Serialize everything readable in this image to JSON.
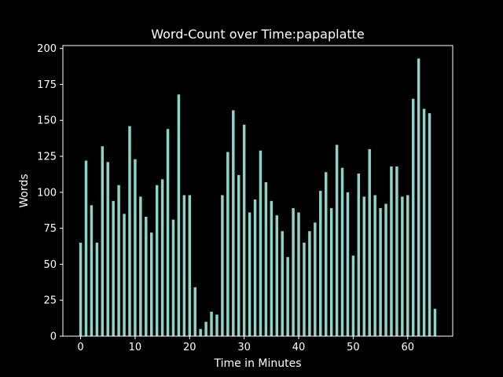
{
  "chart_data": {
    "type": "bar",
    "title": "Word-Count over Time:papaplatte",
    "xlabel": "Time in Minutes",
    "ylabel": "Words",
    "xlim": [
      -3.25,
      68.25
    ],
    "ylim": [
      0,
      202
    ],
    "xticks": [
      0,
      10,
      20,
      30,
      40,
      50,
      60
    ],
    "yticks": [
      0,
      25,
      50,
      75,
      100,
      125,
      150,
      175,
      200
    ],
    "grid": false,
    "x": [
      0,
      1,
      2,
      3,
      4,
      5,
      6,
      7,
      8,
      9,
      10,
      11,
      12,
      13,
      14,
      15,
      16,
      17,
      18,
      19,
      20,
      21,
      22,
      23,
      24,
      25,
      26,
      27,
      28,
      29,
      30,
      31,
      32,
      33,
      34,
      35,
      36,
      37,
      38,
      39,
      40,
      41,
      42,
      43,
      44,
      45,
      46,
      47,
      48,
      49,
      50,
      51,
      52,
      53,
      54,
      55,
      56,
      57,
      58,
      59,
      60,
      61,
      62,
      63,
      64,
      65
    ],
    "values": [
      65,
      122,
      91,
      65,
      132,
      121,
      94,
      105,
      85,
      146,
      123,
      97,
      83,
      72,
      105,
      109,
      144,
      81,
      168,
      98,
      98,
      34,
      5,
      10,
      17,
      15,
      98,
      128,
      157,
      112,
      147,
      86,
      95,
      129,
      107,
      94,
      84,
      73,
      55,
      89,
      86,
      65,
      73,
      79,
      101,
      114,
      89,
      133,
      117,
      100,
      56,
      113,
      97,
      130,
      98,
      89,
      92,
      118,
      118,
      97,
      98,
      165,
      193,
      158,
      155,
      19
    ],
    "bar_width": 0.5
  },
  "colors": {
    "background": "#000000",
    "foreground": "#ffffff",
    "bar": "#8dd3c7"
  }
}
